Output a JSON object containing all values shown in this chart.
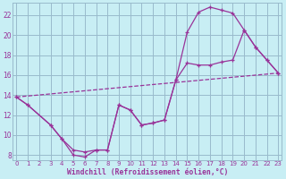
{
  "bg_color": "#c8eef4",
  "line_color": "#993399",
  "grid_color": "#99bbcc",
  "xlabel": "Windchill (Refroidissement éolien,°C)",
  "xlim": [
    -0.3,
    23.3
  ],
  "ylim": [
    7.5,
    23.2
  ],
  "yticks": [
    8,
    10,
    12,
    14,
    16,
    18,
    20,
    22
  ],
  "xticks": [
    0,
    1,
    2,
    3,
    4,
    5,
    6,
    7,
    8,
    9,
    10,
    11,
    12,
    13,
    14,
    15,
    16,
    17,
    18,
    19,
    20,
    21,
    22,
    23
  ],
  "line1_x": [
    0,
    1,
    3,
    4,
    5,
    6,
    7,
    8,
    9,
    10,
    11,
    12,
    13,
    14,
    15,
    16,
    17,
    18,
    19,
    20,
    21,
    22,
    23
  ],
  "line1_y": [
    13.8,
    13.0,
    11.0,
    9.6,
    8.5,
    8.3,
    8.5,
    8.5,
    13.0,
    12.5,
    11.0,
    11.2,
    11.5,
    15.5,
    17.2,
    17.0,
    17.0,
    17.3,
    17.5,
    20.5,
    18.8,
    17.5,
    16.2
  ],
  "line2_x": [
    0,
    1,
    3,
    4,
    5,
    6,
    7,
    8,
    9,
    10,
    11,
    12,
    13,
    14,
    15,
    16,
    17,
    18,
    19,
    20,
    21,
    22,
    23
  ],
  "line2_y": [
    13.8,
    13.0,
    11.0,
    9.6,
    8.0,
    7.8,
    8.5,
    8.5,
    13.0,
    12.5,
    11.0,
    11.2,
    11.5,
    15.5,
    20.3,
    22.3,
    22.8,
    22.5,
    22.2,
    20.5,
    18.8,
    17.5,
    16.2
  ],
  "line3_x": [
    0,
    23
  ],
  "line3_y": [
    13.8,
    16.2
  ]
}
